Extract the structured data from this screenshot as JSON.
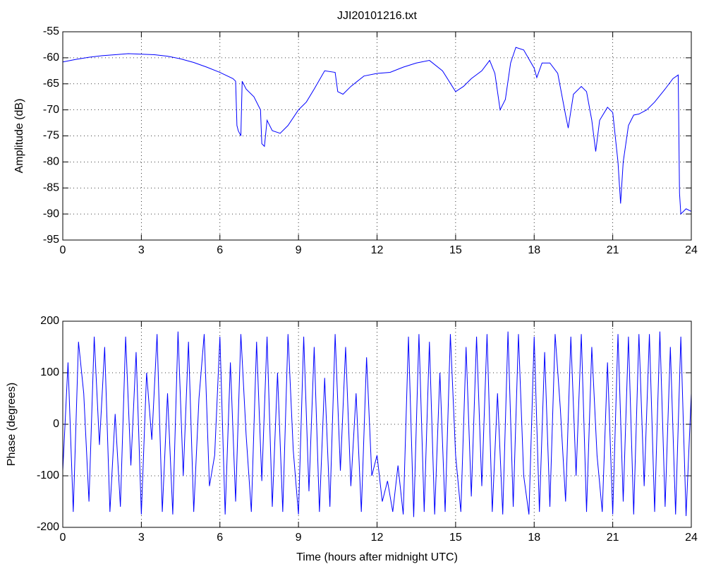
{
  "chart_data": [
    {
      "type": "line",
      "title": "JJI20101216.txt",
      "ylabel": "Amplitude (dB)",
      "color": "#0000ff",
      "grid": true,
      "xlim": [
        0,
        24
      ],
      "xticks": [
        0,
        3,
        6,
        9,
        12,
        15,
        18,
        21,
        24
      ],
      "ylim": [
        -95,
        -55
      ],
      "yticks": [
        -95,
        -90,
        -85,
        -80,
        -75,
        -70,
        -65,
        -60,
        -55
      ],
      "x": [
        0,
        0.5,
        1,
        1.5,
        2,
        2.5,
        3,
        3.5,
        4,
        4.5,
        5,
        5.5,
        6,
        6.5,
        6.6,
        6.65,
        6.7,
        6.8,
        6.85,
        7,
        7.3,
        7.55,
        7.6,
        7.7,
        7.8,
        8,
        8.3,
        8.6,
        9,
        9.3,
        9.6,
        10,
        10.4,
        10.5,
        10.7,
        11,
        11.5,
        12,
        12.5,
        13,
        13.5,
        14,
        14.5,
        15,
        15.3,
        15.6,
        16,
        16.3,
        16.5,
        16.7,
        16.9,
        17.1,
        17.3,
        17.6,
        18,
        18.1,
        18.3,
        18.6,
        18.9,
        19.2,
        19.3,
        19.5,
        19.8,
        20,
        20.2,
        20.35,
        20.5,
        20.8,
        21,
        21.2,
        21.3,
        21.4,
        21.6,
        21.8,
        22,
        22.3,
        22.6,
        23,
        23.3,
        23.5,
        23.55,
        23.6,
        23.8,
        24
      ],
      "values": [
        -60.8,
        -60.3,
        -59.9,
        -59.6,
        -59.4,
        -59.2,
        -59.3,
        -59.4,
        -59.7,
        -60.2,
        -60.9,
        -61.8,
        -62.8,
        -64,
        -64.5,
        -73,
        -74,
        -75,
        -64.5,
        -66,
        -67.5,
        -70,
        -76.5,
        -77,
        -72,
        -74,
        -74.5,
        -73,
        -70,
        -68.5,
        -66,
        -62.5,
        -62.8,
        -66.5,
        -67,
        -65.5,
        -63.5,
        -63,
        -62.8,
        -61.8,
        -61,
        -60.5,
        -62.5,
        -66.5,
        -65.5,
        -64,
        -62.5,
        -60.5,
        -63,
        -70,
        -68,
        -61,
        -58,
        -58.5,
        -62,
        -63.8,
        -61,
        -61,
        -63,
        -71,
        -73.5,
        -67,
        -65.5,
        -66.5,
        -72,
        -78,
        -72,
        -69.5,
        -70.5,
        -80,
        -88,
        -80,
        -73,
        -71,
        -70.8,
        -70,
        -68.5,
        -66,
        -64,
        -63.3,
        -86,
        -90,
        -89,
        -89.5
      ]
    },
    {
      "type": "line",
      "xlabel": "Time (hours after midnight UTC)",
      "ylabel": "Phase (degrees)",
      "color": "#0000ff",
      "grid": true,
      "xlim": [
        0,
        24
      ],
      "xticks": [
        0,
        3,
        6,
        9,
        12,
        15,
        18,
        21,
        24
      ],
      "ylim": [
        -200,
        200
      ],
      "yticks": [
        -200,
        -100,
        0,
        100,
        200
      ],
      "x": [
        0,
        0.2,
        0.4,
        0.6,
        0.8,
        1,
        1.2,
        1.4,
        1.6,
        1.8,
        2,
        2.2,
        2.4,
        2.6,
        2.8,
        3,
        3.2,
        3.4,
        3.6,
        3.8,
        4,
        4.2,
        4.4,
        4.6,
        4.8,
        5,
        5.2,
        5.4,
        5.6,
        5.8,
        6,
        6.2,
        6.4,
        6.6,
        6.8,
        7,
        7.2,
        7.4,
        7.6,
        7.8,
        8,
        8.2,
        8.4,
        8.6,
        8.8,
        9,
        9.2,
        9.4,
        9.6,
        9.8,
        10,
        10.2,
        10.4,
        10.6,
        10.8,
        11,
        11.2,
        11.4,
        11.6,
        11.8,
        12,
        12.2,
        12.4,
        12.6,
        12.8,
        13,
        13.2,
        13.4,
        13.6,
        13.8,
        14,
        14.2,
        14.4,
        14.6,
        14.8,
        15,
        15.2,
        15.4,
        15.6,
        15.8,
        16,
        16.2,
        16.4,
        16.6,
        16.8,
        17,
        17.2,
        17.4,
        17.6,
        17.8,
        18,
        18.2,
        18.4,
        18.6,
        18.8,
        19,
        19.2,
        19.4,
        19.6,
        19.8,
        20,
        20.2,
        20.4,
        20.6,
        20.8,
        21,
        21.2,
        21.4,
        21.6,
        21.8,
        22,
        22.2,
        22.4,
        22.6,
        22.8,
        23,
        23.2,
        23.4,
        23.6,
        23.8,
        24
      ],
      "values": [
        -90,
        120,
        -170,
        160,
        60,
        -150,
        170,
        -40,
        150,
        -170,
        20,
        -160,
        170,
        -80,
        140,
        -175,
        100,
        -30,
        175,
        -170,
        60,
        -175,
        180,
        -100,
        160,
        -170,
        50,
        175,
        -120,
        -60,
        170,
        -175,
        120,
        -150,
        175,
        -20,
        -170,
        160,
        -110,
        170,
        -160,
        100,
        -170,
        175,
        -50,
        -175,
        170,
        -130,
        150,
        -170,
        90,
        -160,
        175,
        -90,
        150,
        -120,
        60,
        -170,
        130,
        -100,
        -60,
        -150,
        -110,
        -170,
        -80,
        -175,
        170,
        -180,
        175,
        -170,
        160,
        -175,
        100,
        -170,
        175,
        -60,
        -170,
        150,
        -140,
        170,
        -120,
        175,
        -170,
        60,
        -175,
        180,
        -160,
        175,
        -100,
        -175,
        170,
        -170,
        140,
        -160,
        175,
        30,
        -150,
        170,
        -100,
        175,
        -170,
        150,
        -60,
        -170,
        120,
        -175,
        175,
        -150,
        170,
        -175,
        175,
        -120,
        175,
        -170,
        180,
        -160,
        150,
        -175,
        170,
        -178,
        60
      ]
    }
  ]
}
